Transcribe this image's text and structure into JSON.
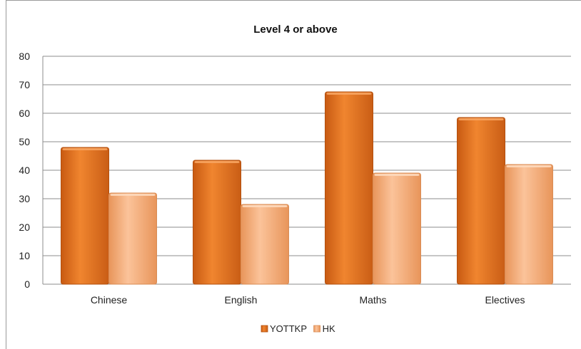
{
  "chart_data": {
    "type": "bar",
    "title": "Level 4 or above",
    "xlabel": "",
    "ylabel": "",
    "categories": [
      "Chinese",
      "English",
      "Maths",
      "Electives"
    ],
    "series": [
      {
        "name": "YOTTKP",
        "values": [
          48,
          43.5,
          67.5,
          58.5
        ],
        "color": "#E87722"
      },
      {
        "name": "HK",
        "values": [
          32,
          28,
          39,
          42
        ],
        "color": "#F5B07E"
      }
    ],
    "ylim": [
      0,
      80
    ],
    "yticks": [
      "0",
      "10",
      "20",
      "30",
      "40",
      "50",
      "60",
      "70",
      "80"
    ],
    "grid": true,
    "legend_position": "bottom"
  }
}
